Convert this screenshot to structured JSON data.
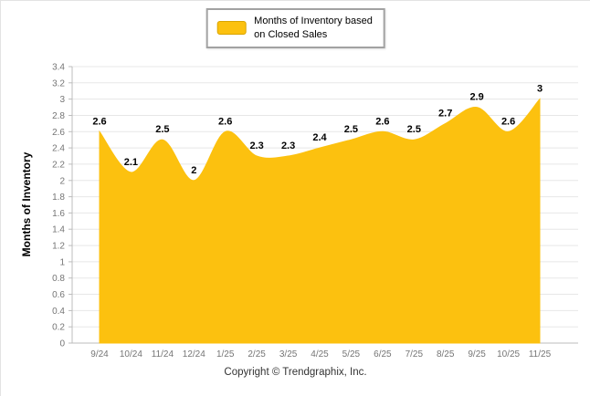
{
  "legend": {
    "line1": "Months of Inventory based",
    "line2": "on Closed Sales"
  },
  "footer": {
    "copyright": "Copyright © Trendgraphix, Inc."
  },
  "chart_data": {
    "type": "area",
    "title": "",
    "legend": "Months of Inventory based on Closed Sales",
    "categories": [
      "9/24",
      "10/24",
      "11/24",
      "12/24",
      "1/25",
      "2/25",
      "3/25",
      "4/25",
      "5/25",
      "6/25",
      "7/25",
      "8/25",
      "9/25",
      "10/25",
      "11/25"
    ],
    "values": [
      2.6,
      2.1,
      2.5,
      2,
      2.6,
      2.3,
      2.3,
      2.4,
      2.5,
      2.6,
      2.5,
      2.7,
      2.9,
      2.6,
      3
    ],
    "xlabel": "",
    "ylabel": "Months of Inventory",
    "ylim": [
      0,
      3.4
    ],
    "ytick_step": 0.2,
    "grid": true,
    "legend_position": "top-center",
    "fill_color": "#FCC10F",
    "grid_color": "#e7e7e7",
    "axis_color": "#bcbcbc"
  }
}
